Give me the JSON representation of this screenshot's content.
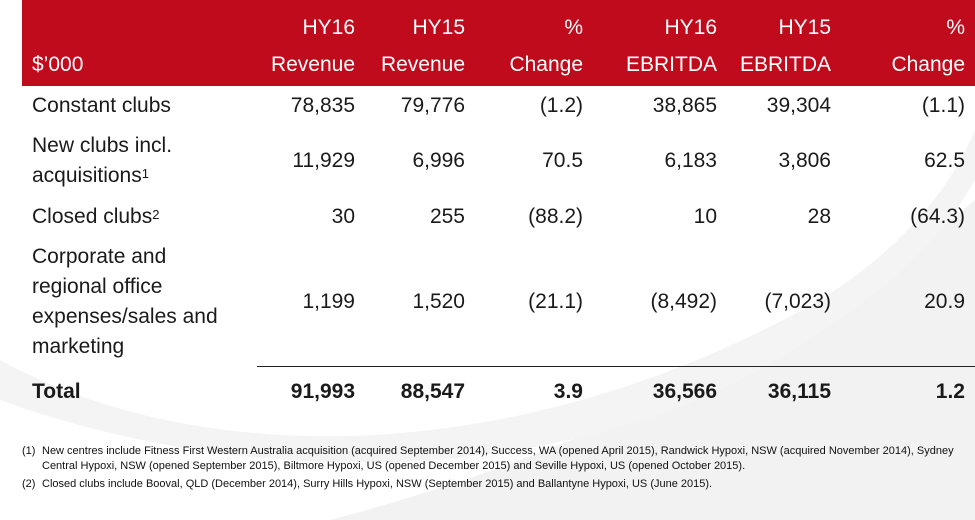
{
  "header": {
    "row1": [
      "",
      "HY16",
      "HY15",
      "%",
      "HY16",
      "HY15",
      "%"
    ],
    "row2": [
      "$’000",
      "Revenue",
      "Revenue",
      "Change",
      "EBRITDA",
      "EBRITDA",
      "Change"
    ]
  },
  "rows": [
    {
      "label_lines": [
        "Constant clubs"
      ],
      "sup": "",
      "values": [
        "78,835",
        "79,776",
        "(1.2)",
        "38,865",
        "39,304",
        "(1.1)"
      ]
    },
    {
      "label_lines": [
        "New clubs incl.",
        "acquisitions"
      ],
      "sup": "1",
      "values": [
        "11,929",
        "6,996",
        "70.5",
        "6,183",
        "3,806",
        "62.5"
      ]
    },
    {
      "label_lines": [
        "Closed clubs"
      ],
      "sup": "2",
      "values": [
        "30",
        "255",
        "(88.2)",
        "10",
        "28",
        "(64.3)"
      ]
    },
    {
      "label_lines": [
        "Corporate and",
        "regional office",
        "expenses/sales and",
        "marketing"
      ],
      "sup": "",
      "values": [
        "1,199",
        "1,520",
        "(21.1)",
        "(8,492)",
        "(7,023)",
        "20.9"
      ]
    }
  ],
  "total": {
    "label": "Total",
    "values": [
      "91,993",
      "88,547",
      "3.9",
      "36,566",
      "36,115",
      "1.2"
    ]
  },
  "notes": [
    {
      "num": "(1)",
      "text": "New centres include Fitness First Western Australia acquisition (acquired September 2014), Success, WA (opened April 2015), Randwick Hypoxi, NSW (acquired November 2014), Sydney Central Hypoxi, NSW (opened September 2015), Biltmore Hypoxi, US (opened December 2015) and Seville Hypoxi, US (opened October 2015)."
    },
    {
      "num": "(2)",
      "text": "Closed clubs include Booval, QLD (December 2014), Surry Hills Hypoxi, NSW (September 2015) and Ballantyne Hypoxi, US (June 2015)."
    }
  ],
  "colors": {
    "header_bg": "#c00b1c",
    "header_text": "#ffffff"
  }
}
